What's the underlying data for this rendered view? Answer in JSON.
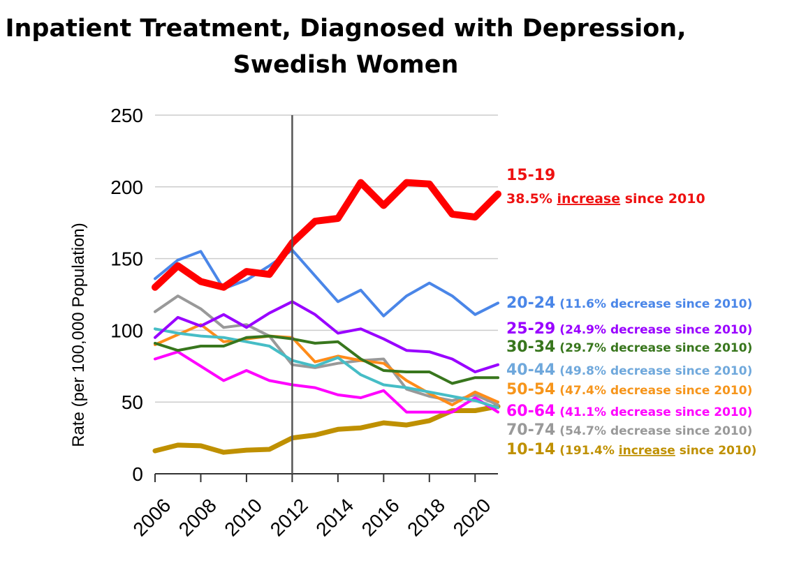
{
  "chart_data": {
    "type": "line",
    "title_lines": [
      "Inpatient Treatment, Diagnosed with Depression,",
      "Swedish Women"
    ],
    "xlabel": "",
    "ylabel": "Rate (per 100,000 Population)",
    "ylim": [
      0,
      250
    ],
    "yticks": [
      0,
      50,
      100,
      150,
      200,
      250
    ],
    "xlim": [
      2006,
      2021
    ],
    "xticks": [
      2006,
      2008,
      2010,
      2012,
      2014,
      2016,
      2018,
      2020
    ],
    "x": [
      2006,
      2007,
      2008,
      2009,
      2010,
      2011,
      2012,
      2013,
      2014,
      2015,
      2016,
      2017,
      2018,
      2019,
      2020,
      2021
    ],
    "grid": "horizontal",
    "vertical_marker_x": 2012,
    "series": [
      {
        "name": "10-14",
        "color": "#bf9000",
        "stroke": 7,
        "note": "(191.4% ",
        "note_em": "increase",
        "note_tail": " since 2010)",
        "values": [
          16,
          20,
          19.5,
          15,
          16.5,
          17,
          25,
          27,
          31,
          32,
          35.5,
          34,
          37,
          44,
          44,
          47
        ]
      },
      {
        "name": "70-74",
        "color": "#999999",
        "stroke": 4,
        "note": "(54.7% decrease since 2010)",
        "values": [
          113,
          124,
          115,
          102,
          104,
          96,
          76,
          74,
          77,
          79,
          80,
          59,
          54,
          51,
          55,
          48
        ]
      },
      {
        "name": "60-64",
        "color": "#ff00ff",
        "stroke": 4,
        "note": "(41.1% decrease since 2010)",
        "values": [
          80,
          85,
          75,
          65,
          72,
          65,
          62,
          60,
          55,
          53,
          58,
          43,
          43,
          43,
          53,
          43
        ]
      },
      {
        "name": "50-54",
        "color": "#ff8c1a",
        "stroke": 4,
        "note": "(47.4% decrease since 2010)",
        "values": [
          90,
          97,
          104,
          92,
          94,
          96,
          95,
          78,
          82,
          79,
          77,
          65,
          56,
          48,
          57,
          50
        ]
      },
      {
        "name": "40-44",
        "color": "#46bdc6",
        "stroke": 4,
        "note": "(49.8% decrease since 2010)",
        "values": [
          101,
          98,
          96,
          95,
          92,
          89,
          79,
          75,
          81,
          69,
          62,
          60,
          57,
          54,
          51,
          46
        ]
      },
      {
        "name": "30-34",
        "color": "#38761d",
        "stroke": 4,
        "note": "(29.7% decrease since 2010)",
        "values": [
          91,
          86,
          89,
          89,
          95,
          96,
          94,
          91,
          92,
          80,
          72,
          71,
          71,
          63,
          67,
          67
        ]
      },
      {
        "name": "25-29",
        "color": "#9900ff",
        "stroke": 4,
        "note": "(24.9% decrease since 2010)",
        "values": [
          95,
          109,
          103,
          111,
          102,
          112,
          120,
          111,
          98,
          101,
          94,
          86,
          85,
          80,
          71,
          76
        ]
      },
      {
        "name": "20-24",
        "color": "#4a86e8",
        "stroke": 4,
        "note": "(11.6% decrease since 2010)",
        "values": [
          136,
          149,
          155,
          129,
          135,
          145,
          156,
          138,
          120,
          128,
          110,
          124,
          133,
          124,
          111,
          119
        ]
      },
      {
        "name": "15-19",
        "color": "#ff0000",
        "stroke": 10,
        "note": "38.5% ",
        "note_em": "increase",
        "note_tail": " since 2010",
        "values": [
          130,
          145,
          134,
          130,
          141,
          139,
          161,
          176,
          178,
          203,
          187,
          203,
          202,
          181,
          179,
          195
        ]
      }
    ],
    "annotations": [
      {
        "series": "15-19",
        "label": "15-19",
        "note": "38.5% ",
        "note_em": "increase",
        "note_tail": " since 2010",
        "color": "#ee1111"
      },
      {
        "series": "20-24",
        "label": "20-24",
        "note": "(11.6% decrease since 2010)",
        "color": "#4a86e8"
      },
      {
        "series": "25-29",
        "label": "25-29",
        "note": "(24.9% decrease since 2010)",
        "color": "#9900ff"
      },
      {
        "series": "30-34",
        "label": "30-34",
        "note": "(29.7% decrease since 2010)",
        "color": "#38761d"
      },
      {
        "series": "40-44",
        "label": "40-44",
        "note": "(49.8% decrease since 2010)",
        "color": "#6fa8dc"
      },
      {
        "series": "50-54",
        "label": "50-54",
        "note": "(47.4% decrease since 2010)",
        "color": "#f6951b"
      },
      {
        "series": "60-64",
        "label": "60-64",
        "note": "(41.1% decrease since 2010)",
        "color": "#ff00ff"
      },
      {
        "series": "70-74",
        "label": "70-74",
        "note": "(54.7% decrease since 2010)",
        "color": "#999999"
      },
      {
        "series": "10-14",
        "label": "10-14",
        "note": "(191.4% ",
        "note_em": "increase",
        "note_tail": " since 2010)",
        "color": "#bf9000"
      }
    ]
  }
}
